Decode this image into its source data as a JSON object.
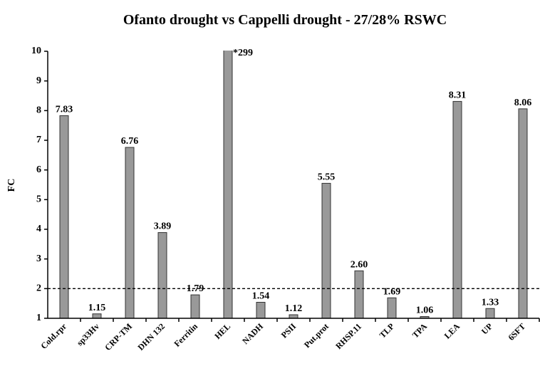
{
  "chart_data": {
    "type": "bar",
    "title": "Ofanto drought vs Cappelli drought - 27/28% RSWC",
    "ylabel": "FC",
    "categories": [
      "Cold.rpr",
      "sp33Hv",
      "CRP-TM",
      "DHN 132",
      "Ferritin",
      "HEL",
      "NADH",
      "PSII",
      "Put.prot",
      "RHSP.11",
      "TLP",
      "TPA",
      "LEA",
      "UP",
      "6SFT"
    ],
    "values": [
      7.83,
      1.15,
      6.76,
      3.89,
      1.79,
      299,
      1.54,
      1.12,
      5.55,
      2.6,
      1.69,
      1.06,
      8.31,
      1.33,
      8.06
    ],
    "value_labels": [
      "7.83",
      "1.15",
      "6.76",
      "3.89",
      "1.79",
      "*299",
      "1.54",
      "1.12",
      "5.55",
      "2.60",
      "1.69",
      "1.06",
      "8.31",
      "1.33",
      "8.06"
    ],
    "color": "#999999",
    "reference_line": 2,
    "ylim": [
      1,
      10
    ],
    "yticks": [
      1,
      2,
      3,
      4,
      5,
      6,
      7,
      8,
      9,
      10
    ],
    "grid": false
  }
}
